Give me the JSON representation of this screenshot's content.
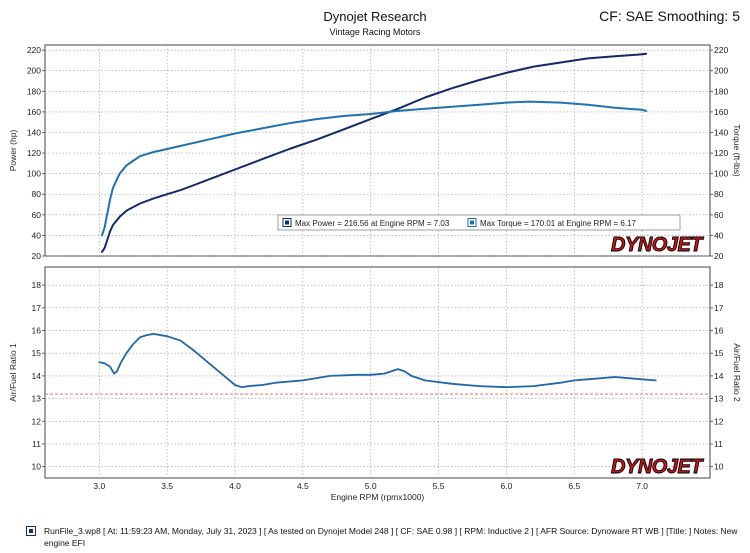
{
  "header": {
    "title": "Dynojet Research",
    "subtitle": "Vintage Racing Motors",
    "cf": "CF: SAE Smoothing: 5"
  },
  "legend": {
    "max_power": "Max Power = 216.56 at Engine RPM = 7.03",
    "max_torque": "Max Torque = 170.01 at Engine RPM = 6.17"
  },
  "logo_text": "DYNOJET",
  "footer": {
    "text": "RunFile_3.wp8 [ At: 11:59:23 AM, Monday, July 31, 2023 ] [ As tested on Dynojet Model 248 ] [ CF: SAE 0.98 ] [ RPM: Inductive 2 ] [ AFR Source: Dynoware RT WB ] [Title: ] Notes: New engine EFI"
  },
  "colors": {
    "power": "#14286b",
    "torque": "#1f72b0",
    "afr": "#1f66aa",
    "reference": "#e06060",
    "logo_red": "#d0121b",
    "grid": "#9a9a9a"
  },
  "chart_data": [
    {
      "type": "line",
      "xlabel": "Engine RPM (rpmx1000)",
      "ylabel": "Power (hp)",
      "ylabel_right": "Torque (ft-lbs)",
      "xlim": [
        2.6,
        7.5
      ],
      "ylim": [
        20,
        225
      ],
      "x_ticks": [
        3.0,
        3.5,
        4.0,
        4.5,
        5.0,
        5.5,
        6.0,
        6.5,
        7.0
      ],
      "x_tick_labels": [
        "3.0",
        "3.5",
        "4.0",
        "4.5",
        "5.0",
        "5.5",
        "6.0",
        "6.5",
        "7.0"
      ],
      "y_ticks": [
        20,
        40,
        60,
        80,
        100,
        120,
        140,
        160,
        180,
        200,
        220
      ],
      "y_tick_labels": [
        "20",
        "40",
        "60",
        "80",
        "100",
        "120",
        "140",
        "160",
        "180",
        "200",
        "220"
      ],
      "grid": true,
      "legend_position": "bottom-right",
      "series": [
        {
          "name": "Power",
          "x": [
            3.02,
            3.04,
            3.06,
            3.08,
            3.1,
            3.15,
            3.2,
            3.3,
            3.4,
            3.5,
            3.6,
            3.7,
            3.8,
            3.9,
            4.0,
            4.2,
            4.4,
            4.6,
            4.8,
            5.0,
            5.2,
            5.4,
            5.6,
            5.8,
            6.0,
            6.2,
            6.4,
            6.6,
            6.8,
            7.0,
            7.03
          ],
          "values": [
            24,
            28,
            36,
            44,
            50,
            58,
            64,
            71,
            76,
            80,
            84,
            89,
            94,
            99,
            104,
            114,
            124,
            133,
            143,
            153,
            163,
            174,
            183,
            191,
            198,
            204,
            208,
            212,
            214,
            216,
            216.5
          ]
        },
        {
          "name": "Torque",
          "x": [
            3.02,
            3.04,
            3.06,
            3.08,
            3.1,
            3.15,
            3.2,
            3.3,
            3.4,
            3.5,
            3.6,
            3.8,
            4.0,
            4.2,
            4.4,
            4.6,
            4.8,
            5.0,
            5.2,
            5.4,
            5.6,
            5.8,
            6.0,
            6.17,
            6.4,
            6.6,
            6.8,
            7.0,
            7.03
          ],
          "values": [
            40,
            48,
            62,
            75,
            86,
            100,
            108,
            117,
            121,
            124,
            127,
            133,
            139,
            144,
            149,
            153,
            156,
            158,
            161,
            163,
            165,
            167,
            169,
            170,
            169,
            167,
            164,
            162,
            161
          ]
        }
      ]
    },
    {
      "type": "line",
      "xlabel": "Engine RPM (rpmx1000)",
      "ylabel": "Air/Fuel Ratio 1",
      "ylabel_right": "Air/Fuel Ratio 2",
      "xlim": [
        2.6,
        7.5
      ],
      "ylim": [
        9.5,
        18.8
      ],
      "x_ticks": [
        3.0,
        3.5,
        4.0,
        4.5,
        5.0,
        5.5,
        6.0,
        6.5,
        7.0
      ],
      "x_tick_labels": [
        "3.0",
        "3.5",
        "4.0",
        "4.5",
        "5.0",
        "5.5",
        "6.0",
        "6.5",
        "7.0"
      ],
      "y_ticks": [
        10,
        11,
        12,
        13,
        14,
        15,
        16,
        17,
        18
      ],
      "y_tick_labels": [
        "10",
        "11",
        "12",
        "13",
        "14",
        "15",
        "16",
        "17",
        "18"
      ],
      "grid": true,
      "reference_line": 13.2,
      "series": [
        {
          "name": "Air/Fuel Ratio 1",
          "x": [
            3.0,
            3.04,
            3.08,
            3.11,
            3.13,
            3.16,
            3.2,
            3.25,
            3.3,
            3.35,
            3.4,
            3.45,
            3.5,
            3.6,
            3.7,
            3.8,
            3.9,
            4.0,
            4.05,
            4.1,
            4.2,
            4.3,
            4.5,
            4.7,
            4.9,
            5.0,
            5.1,
            5.15,
            5.2,
            5.25,
            5.3,
            5.4,
            5.6,
            5.8,
            6.0,
            6.2,
            6.4,
            6.5,
            6.6,
            6.8,
            6.9,
            7.0,
            7.1
          ],
          "values": [
            14.6,
            14.55,
            14.4,
            14.1,
            14.2,
            14.6,
            15.0,
            15.4,
            15.7,
            15.8,
            15.85,
            15.8,
            15.75,
            15.55,
            15.1,
            14.6,
            14.1,
            13.6,
            13.5,
            13.55,
            13.6,
            13.7,
            13.8,
            14.0,
            14.05,
            14.05,
            14.1,
            14.2,
            14.3,
            14.2,
            14.0,
            13.8,
            13.65,
            13.55,
            13.5,
            13.55,
            13.7,
            13.8,
            13.85,
            13.95,
            13.9,
            13.85,
            13.8
          ]
        }
      ]
    }
  ]
}
